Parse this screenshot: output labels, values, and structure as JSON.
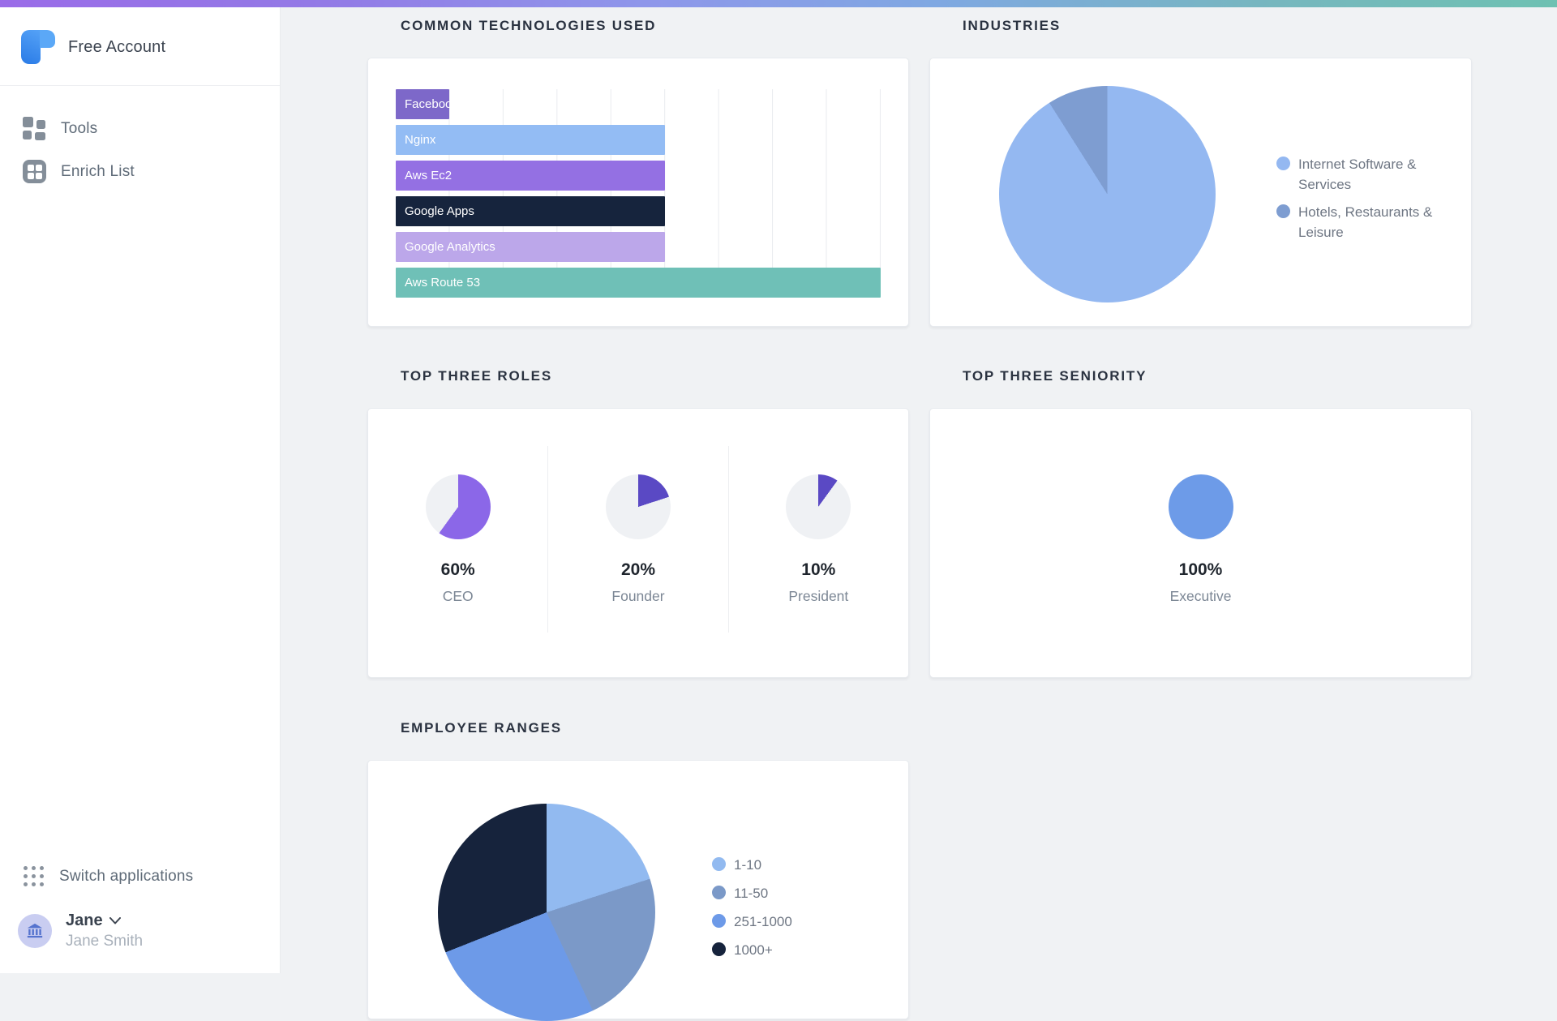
{
  "sidebar": {
    "account_label": "Free Account",
    "items": [
      {
        "label": "Tools"
      },
      {
        "label": "Enrich List"
      }
    ],
    "switch_label": "Switch applications",
    "user": {
      "name": "Jane",
      "full_name": "Jane Smith"
    }
  },
  "colors": {
    "topbar_gradient_left": "#9A6CE8",
    "topbar_gradient_right": "#6EC1B2",
    "brand_blue": "#2E7FE8",
    "card_background": "#FFFFFF",
    "page_background": "#F0F2F4"
  },
  "chart_data": [
    {
      "type": "bar",
      "title": "COMMON TECHNOLOGIES USED",
      "orientation": "horizontal",
      "categories": [
        "Facebook",
        "Nginx",
        "Aws Ec2",
        "Google Apps",
        "Google Analytics",
        "Aws Route 53"
      ],
      "values": [
        1,
        5,
        5,
        5,
        5,
        9
      ],
      "xlim": [
        0,
        9
      ],
      "grid": true,
      "colors": [
        "#7D68C9",
        "#93BCF4",
        "#9470E3",
        "#16243D",
        "#BCA7EA",
        "#6FC0B7"
      ]
    },
    {
      "type": "pie",
      "title": "INDUSTRIES",
      "labels": [
        "Internet Software & Services",
        "Hotels, Restaurants & Leisure"
      ],
      "values": [
        91,
        9
      ],
      "colors": [
        "#94B8F1",
        "#7E9DD1"
      ],
      "legend_position": "right"
    },
    {
      "type": "pie-group",
      "title": "TOP THREE ROLES",
      "empty_color": "#EFF1F4",
      "items": [
        {
          "label": "CEO",
          "pct": 60,
          "color": "#8B67E8"
        },
        {
          "label": "Founder",
          "pct": 20,
          "color": "#5A49C4"
        },
        {
          "label": "President",
          "pct": 10,
          "color": "#5A49C4"
        }
      ]
    },
    {
      "type": "pie-group",
      "title": "TOP THREE SENIORITY",
      "empty_color": "#EFF1F4",
      "items": [
        {
          "label": "Executive",
          "pct": 100,
          "color": "#6D9BE8"
        }
      ]
    },
    {
      "type": "pie",
      "title": "EMPLOYEE RANGES",
      "labels": [
        "1-10",
        "11-50",
        "251-1000",
        "1000+"
      ],
      "values": [
        20,
        23,
        26,
        31
      ],
      "colors": [
        "#92BAF0",
        "#7B99C8",
        "#6D9AE8",
        "#16233C"
      ],
      "legend_position": "right"
    }
  ]
}
